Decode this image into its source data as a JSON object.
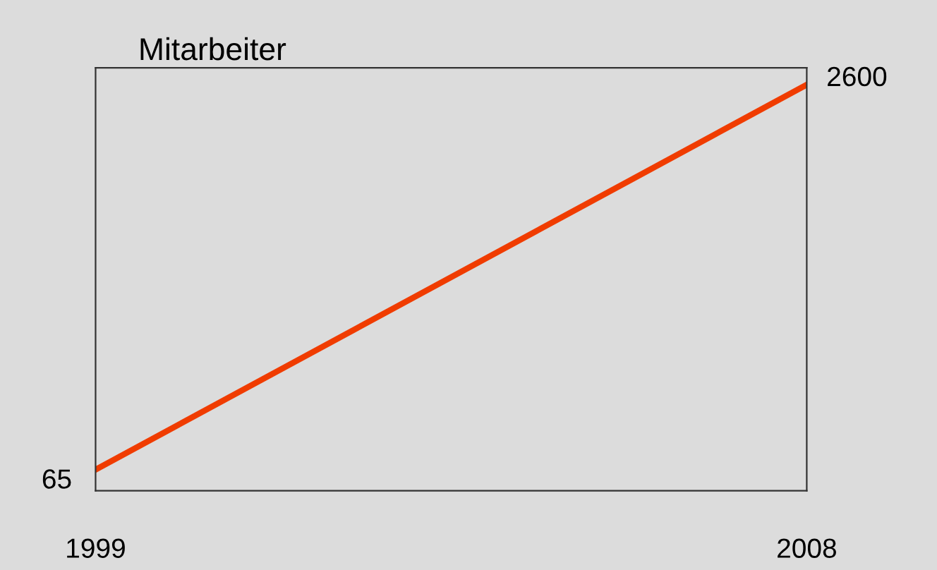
{
  "chart_data": {
    "type": "line",
    "title": "Mitarbeiter",
    "categories": [
      "1999",
      "2008"
    ],
    "series": [
      {
        "color": "#f03c00",
        "values": [
          65,
          2600
        ]
      }
    ],
    "data_labels": true,
    "legend": false,
    "marker": "none",
    "line_style": "solid"
  }
}
